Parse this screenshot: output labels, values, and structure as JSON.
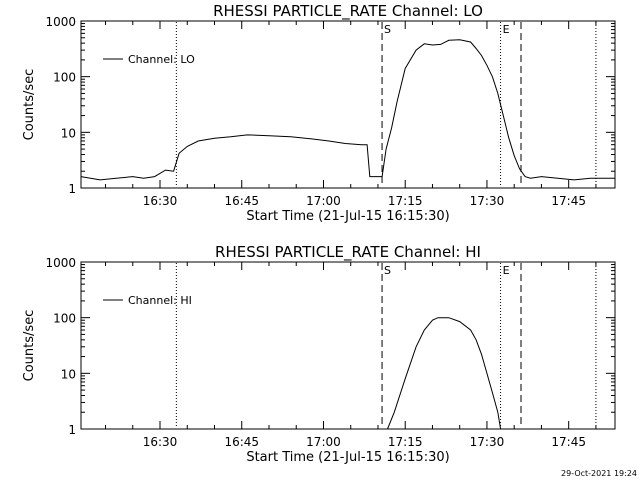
{
  "chart_data": [
    {
      "type": "line",
      "title": "RHESSI PARTICLE_RATE Channel: LO",
      "xlabel": "Start Time (21-Jul-15 16:15:30)",
      "ylabel": "Counts/sec",
      "yscale": "log",
      "xlim": [
        "16:15:30",
        "17:53:30"
      ],
      "ylim": [
        1,
        1000
      ],
      "x_ticks": [
        "16:30",
        "16:45",
        "17:00",
        "17:15",
        "17:30",
        "17:45"
      ],
      "y_ticks": [
        "1",
        "10",
        "100",
        "1000"
      ],
      "legend": {
        "position": "top-left",
        "entries": [
          "Channel: LO"
        ]
      },
      "grid": false,
      "markers": [
        {
          "time": "16:33",
          "style": "dotted",
          "label": ""
        },
        {
          "time": "17:10:45",
          "style": "dashed",
          "label": "S"
        },
        {
          "time": "17:32:30",
          "style": "dotted",
          "label": "E"
        },
        {
          "time": "17:36:15",
          "style": "dashed",
          "label": ""
        },
        {
          "time": "17:50",
          "style": "dotted",
          "label": ""
        }
      ],
      "series": [
        {
          "name": "Channel: LO",
          "x": [
            "16:15:30",
            "16:19",
            "16:22",
            "16:25",
            "16:27",
            "16:29",
            "16:31",
            "16:32:30",
            "16:33:30",
            "16:35",
            "16:37",
            "16:40",
            "16:43",
            "16:46",
            "16:50",
            "16:54",
            "16:58",
            "17:01",
            "17:04",
            "17:07",
            "17:08",
            "17:08:30",
            "17:10:45",
            "17:11:30",
            "17:12:30",
            "17:13:30",
            "17:15",
            "17:17",
            "17:18:30",
            "17:20",
            "17:21:30",
            "17:23",
            "17:25",
            "17:27",
            "17:28",
            "17:29",
            "17:30",
            "17:31",
            "17:32",
            "17:33",
            "17:34",
            "17:35",
            "17:36",
            "17:37",
            "17:38",
            "17:40",
            "17:43",
            "17:46",
            "17:49",
            "17:51",
            "17:53:30"
          ],
          "y": [
            1.6,
            1.4,
            1.5,
            1.6,
            1.5,
            1.6,
            2.1,
            2.0,
            4.2,
            5.6,
            7.0,
            7.8,
            8.3,
            9.0,
            8.7,
            8.3,
            7.6,
            7.0,
            6.3,
            6.0,
            6.0,
            1.6,
            1.6,
            5.0,
            12,
            35,
            140,
            300,
            390,
            370,
            380,
            450,
            460,
            420,
            320,
            240,
            160,
            100,
            50,
            20,
            8.0,
            3.8,
            2.2,
            1.6,
            1.5,
            1.6,
            1.5,
            1.4,
            1.5,
            1.5,
            1.5
          ]
        }
      ]
    },
    {
      "type": "line",
      "title": "RHESSI PARTICLE_RATE Channel: HI",
      "xlabel": "Start Time (21-Jul-15 16:15:30)",
      "ylabel": "Counts/sec",
      "yscale": "log",
      "xlim": [
        "16:15:30",
        "17:53:30"
      ],
      "ylim": [
        1,
        1000
      ],
      "x_ticks": [
        "16:30",
        "16:45",
        "17:00",
        "17:15",
        "17:30",
        "17:45"
      ],
      "y_ticks": [
        "1",
        "10",
        "100",
        "1000"
      ],
      "legend": {
        "position": "top-left",
        "entries": [
          "Channel: HI"
        ]
      },
      "grid": false,
      "markers": [
        {
          "time": "16:33",
          "style": "dotted",
          "label": ""
        },
        {
          "time": "17:10:45",
          "style": "dashed",
          "label": "S"
        },
        {
          "time": "17:32:30",
          "style": "dotted",
          "label": "E"
        },
        {
          "time": "17:36:15",
          "style": "dashed",
          "label": ""
        },
        {
          "time": "17:50",
          "style": "dotted",
          "label": ""
        }
      ],
      "series": [
        {
          "name": "Channel: HI",
          "x": [
            "17:11:45",
            "17:13",
            "17:15",
            "17:17",
            "17:18:30",
            "17:20",
            "17:21",
            "17:23",
            "17:25",
            "17:27",
            "17:28",
            "17:29",
            "17:30",
            "17:31",
            "17:32",
            "17:32:30"
          ],
          "y": [
            1,
            2,
            8,
            30,
            60,
            90,
            100,
            100,
            85,
            60,
            40,
            22,
            10,
            4.5,
            2,
            1
          ]
        }
      ]
    }
  ],
  "footer": {
    "timestamp": "29-Oct-2021 19:24"
  }
}
